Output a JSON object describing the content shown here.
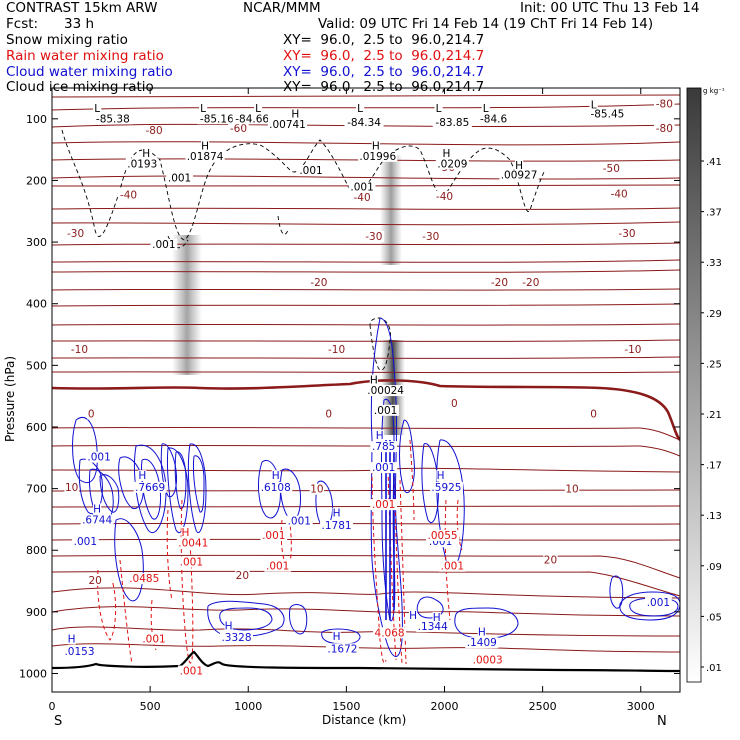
{
  "header": {
    "model": "CONTRAST 15km ARW",
    "org": "NCAR/MMM",
    "init": "Init: 00 UTC Thu 13 Feb 14",
    "fcst_label": "Fcst:",
    "fcst_value": "33 h",
    "valid": "Valid: 09 UTC Fri 14 Feb 14 (19 ChT Fri 14 Feb 14)"
  },
  "fields": [
    {
      "name": "Snow mixing ratio",
      "xy": "XY=  96.0,  2.5 to  96.0,214.7",
      "color": "#000000"
    },
    {
      "name": "Rain water mixing ratio",
      "xy": "XY=  96.0,  2.5 to  96.0,214.7",
      "color": "#e01010"
    },
    {
      "name": "Cloud water mixing ratio",
      "xy": "XY=  96.0,  2.5 to  96.0,214.7",
      "color": "#1010d0"
    },
    {
      "name": "Cloud ice mixing ratio",
      "xy": "XY=  96.0,  2.5 to  96.0,214.7",
      "color": "#000000"
    }
  ],
  "chart_data": {
    "type": "contour",
    "xlabel": "Distance (km)",
    "ylabel": "Pressure (hPa)",
    "xlim": [
      0,
      3200
    ],
    "ylim": [
      1030,
      50
    ],
    "x_ticks": [
      0,
      500,
      1000,
      1500,
      2000,
      2500,
      3000
    ],
    "y_ticks": [
      100,
      200,
      300,
      400,
      500,
      600,
      700,
      800,
      900,
      1000
    ],
    "x_end_labels": {
      "left": "S",
      "right": "N"
    },
    "colorbar": {
      "unit": "g kg⁻¹",
      "labels": [
        ".41",
        ".37",
        ".33",
        ".29",
        ".25",
        ".21",
        ".17",
        ".13",
        ".09",
        ".05",
        ".01"
      ]
    },
    "temperature_contours": {
      "color": "#8b1a1a",
      "levels": [
        {
          "label": "-80",
          "label_x": 3120,
          "p": 80
        },
        {
          "label": "-80",
          "label_x": 3120,
          "p": 120
        },
        {
          "label": "-60",
          "label_x": 950,
          "p": 120
        },
        {
          "label": "-80",
          "label_x": 520,
          "p": 123
        },
        {
          "label": "-50",
          "label_x": 2850,
          "p": 185
        },
        {
          "label": "-50",
          "label_x": 2010,
          "p": 183
        },
        {
          "label": "-40",
          "label_x": 2890,
          "p": 226
        },
        {
          "label": "-40",
          "label_x": 2000,
          "p": 230
        },
        {
          "label": "-40",
          "label_x": 1580,
          "p": 232
        },
        {
          "label": "-40",
          "label_x": 390,
          "p": 228
        },
        {
          "label": "-30",
          "label_x": 2930,
          "p": 290
        },
        {
          "label": "-30",
          "label_x": 1930,
          "p": 295
        },
        {
          "label": "-30",
          "label_x": 1640,
          "p": 295
        },
        {
          "label": "-30",
          "label_x": 120,
          "p": 290
        },
        {
          "label": "-20",
          "label_x": 2440,
          "p": 370
        },
        {
          "label": "-20",
          "label_x": 1360,
          "p": 370
        },
        {
          "label": "-20",
          "label_x": 2280,
          "p": 370
        },
        {
          "label": "-10",
          "label_x": 2960,
          "p": 478
        },
        {
          "label": "-10",
          "label_x": 1450,
          "p": 478
        },
        {
          "label": "-10",
          "label_x": 140,
          "p": 478
        },
        {
          "label": "0",
          "label_x": 2760,
          "p": 583
        },
        {
          "label": "0",
          "label_x": 2050,
          "p": 566
        },
        {
          "label": "0",
          "label_x": 1410,
          "p": 583
        },
        {
          "label": "0",
          "label_x": 200,
          "p": 583
        },
        {
          "label": "10",
          "label_x": 2650,
          "p": 705
        },
        {
          "label": "10",
          "label_x": 1350,
          "p": 705
        },
        {
          "label": "10",
          "label_x": 100,
          "p": 702
        },
        {
          "label": "20",
          "label_x": 2540,
          "p": 820
        },
        {
          "label": "20",
          "label_x": 970,
          "p": 845
        },
        {
          "label": "20",
          "label_x": 220,
          "p": 853
        }
      ]
    },
    "snow_labels": [
      {
        "text": "L",
        "x": 230,
        "p": 87
      },
      {
        "text": "-85.38",
        "x": 310,
        "p": 104
      },
      {
        "text": "L",
        "x": 770,
        "p": 87
      },
      {
        "text": "-85.16",
        "x": 840,
        "p": 104
      },
      {
        "text": "L",
        "x": 1050,
        "p": 87
      },
      {
        "text": "-84.66",
        "x": 1020,
        "p": 104
      },
      {
        "text": "H",
        "x": 1240,
        "p": 96
      },
      {
        "text": ".00741",
        "x": 1200,
        "p": 113
      },
      {
        "text": "L",
        "x": 1570,
        "p": 87
      },
      {
        "text": "-84.34",
        "x": 1590,
        "p": 110
      },
      {
        "text": "L",
        "x": 1970,
        "p": 87
      },
      {
        "text": "-83.85",
        "x": 2040,
        "p": 110
      },
      {
        "text": "L",
        "x": 2210,
        "p": 87
      },
      {
        "text": "-84.6",
        "x": 2250,
        "p": 104
      },
      {
        "text": "L",
        "x": 2760,
        "p": 82
      },
      {
        "text": "-85.45",
        "x": 2830,
        "p": 96
      },
      {
        "text": "H",
        "x": 780,
        "p": 148
      },
      {
        "text": ".01874",
        "x": 780,
        "p": 165
      },
      {
        "text": "H",
        "x": 480,
        "p": 160
      },
      {
        "text": ".0193",
        "x": 460,
        "p": 177
      },
      {
        "text": "H",
        "x": 1650,
        "p": 148
      },
      {
        "text": ".01996",
        "x": 1660,
        "p": 165
      },
      {
        "text": "H",
        "x": 2010,
        "p": 160
      },
      {
        "text": ".0209",
        "x": 2040,
        "p": 177
      },
      {
        "text": "H",
        "x": 2380,
        "p": 180
      },
      {
        "text": ".00927",
        "x": 2380,
        "p": 195
      },
      {
        "text": ".001",
        "x": 650,
        "p": 200
      },
      {
        "text": ".001",
        "x": 1320,
        "p": 188
      },
      {
        "text": ".001",
        "x": 1580,
        "p": 215
      },
      {
        "text": ".001",
        "x": 570,
        "p": 308
      },
      {
        "text": "H",
        "x": 1640,
        "p": 528
      },
      {
        "text": ".00024",
        "x": 1700,
        "p": 545
      },
      {
        "text": ".001",
        "x": 1700,
        "p": 577
      }
    ],
    "cloud_water_labels": [
      {
        "text": ".001",
        "x": 240,
        "p": 653
      },
      {
        "text": "H",
        "x": 460,
        "p": 683
      },
      {
        "text": ".7669",
        "x": 500,
        "p": 702
      },
      {
        "text": "H",
        "x": 230,
        "p": 737
      },
      {
        "text": ".6744",
        "x": 230,
        "p": 755
      },
      {
        "text": ".001",
        "x": 170,
        "p": 790
      },
      {
        "text": "H",
        "x": 1140,
        "p": 683
      },
      {
        "text": ".6108",
        "x": 1140,
        "p": 702
      },
      {
        "text": ".001",
        "x": 1260,
        "p": 757
      },
      {
        "text": "H",
        "x": 1450,
        "p": 744
      },
      {
        "text": ".1781",
        "x": 1450,
        "p": 764
      },
      {
        "text": "H",
        "x": 1670,
        "p": 618
      },
      {
        "text": ".785",
        "x": 1690,
        "p": 636
      },
      {
        "text": ".001",
        "x": 1690,
        "p": 670
      },
      {
        "text": "H",
        "x": 1980,
        "p": 683
      },
      {
        "text": ".5925",
        "x": 2010,
        "p": 702
      },
      {
        "text": ".001",
        "x": 1980,
        "p": 790
      },
      {
        "text": "H",
        "x": 2190,
        "p": 937
      },
      {
        "text": ".1409",
        "x": 2190,
        "p": 954
      },
      {
        "text": "H",
        "x": 1960,
        "p": 913
      },
      {
        "text": ".1344",
        "x": 1940,
        "p": 928
      },
      {
        "text": "H",
        "x": 1840,
        "p": 910
      },
      {
        "text": "H",
        "x": 1450,
        "p": 944
      },
      {
        "text": ".1672",
        "x": 1480,
        "p": 964
      },
      {
        "text": "H",
        "x": 900,
        "p": 927
      },
      {
        "text": ".3328",
        "x": 940,
        "p": 946
      },
      {
        "text": "H",
        "x": 100,
        "p": 948
      },
      {
        "text": ".0153",
        "x": 140,
        "p": 968
      },
      {
        "text": ".001",
        "x": 3090,
        "p": 889
      }
    ],
    "rain_labels": [
      {
        "text": "H",
        "x": 680,
        "p": 775
      },
      {
        "text": ".0041",
        "x": 720,
        "p": 792
      },
      {
        "text": ".001",
        "x": 710,
        "p": 823
      },
      {
        "text": ".0485",
        "x": 470,
        "p": 850
      },
      {
        "text": ".001",
        "x": 1130,
        "p": 780
      },
      {
        "text": ".001",
        "x": 1150,
        "p": 830
      },
      {
        "text": ".001",
        "x": 1690,
        "p": 730
      },
      {
        "text": ".0055",
        "x": 1990,
        "p": 780
      },
      {
        "text": ".001",
        "x": 2040,
        "p": 830
      },
      {
        "text": ".001",
        "x": 520,
        "p": 948
      },
      {
        "text": ".001",
        "x": 710,
        "p": 1000
      },
      {
        "text": ".0003",
        "x": 2220,
        "p": 982
      },
      {
        "text": "4.068",
        "x": 1720,
        "p": 938
      }
    ]
  }
}
